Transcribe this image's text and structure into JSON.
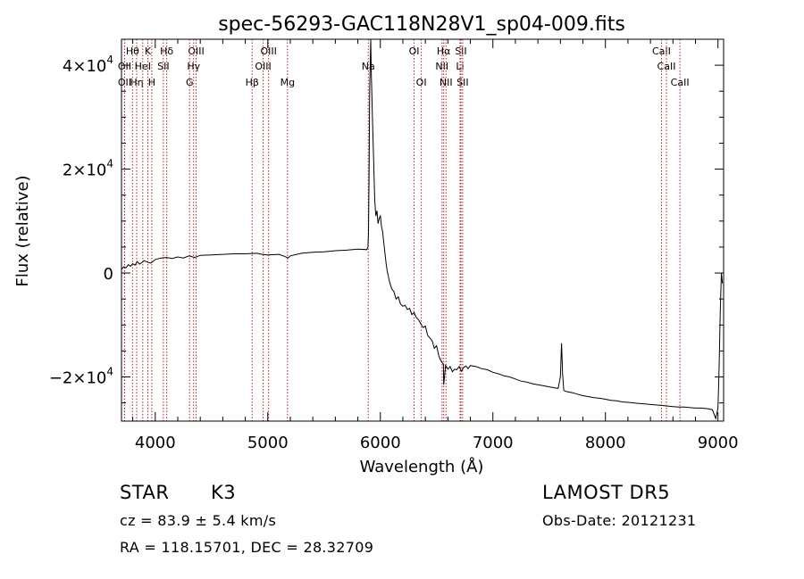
{
  "chart_data": {
    "type": "line",
    "title": "spec-56293-GAC118N28V1_sp04-009.fits",
    "xlabel": "Wavelength (Å)",
    "ylabel": "Flux (relative)",
    "xlim": [
      3700,
      9050
    ],
    "ylim": [
      -28500,
      45000
    ],
    "xticks": [
      4000,
      5000,
      6000,
      7000,
      8000,
      9000
    ],
    "yticks": [
      {
        "value": 40000,
        "mant": "4×10",
        "exp": "4"
      },
      {
        "value": 20000,
        "mant": "2×10",
        "exp": "4"
      },
      {
        "value": 0,
        "mant": "0",
        "exp": ""
      },
      {
        "value": -20000,
        "mant": "−2×10",
        "exp": "4"
      }
    ],
    "grid": false,
    "line_color": "#000000",
    "marker_color": "#b22222",
    "series": [
      {
        "x": [
          3700,
          3720,
          3740,
          3760,
          3780,
          3800,
          3820,
          3840,
          3860,
          3880,
          3900,
          3930,
          3960,
          4000,
          4050,
          4100,
          4150,
          4200,
          4250,
          4300,
          4350,
          4400,
          4500,
          4600,
          4700,
          4800,
          4900,
          4950,
          5000,
          5100,
          5150,
          5180,
          5200,
          5300,
          5400,
          5500,
          5600,
          5700,
          5800,
          5880,
          5890,
          5895,
          5900,
          5905,
          5910,
          5915,
          5920,
          5930,
          5940,
          5950,
          5960,
          5970,
          5980,
          5990,
          6000,
          6010,
          6020,
          6030,
          6040,
          6050,
          6060,
          6080,
          6100,
          6120,
          6140,
          6160,
          6180,
          6200,
          6220,
          6240,
          6260,
          6280,
          6300,
          6320,
          6340,
          6360,
          6380,
          6400,
          6420,
          6440,
          6460,
          6480,
          6500,
          6520,
          6540,
          6560,
          6563,
          6580,
          6600,
          6620,
          6640,
          6660,
          6680,
          6700,
          6720,
          6740,
          6760,
          6780,
          6800,
          6850,
          6900,
          6950,
          7000,
          7050,
          7100,
          7150,
          7200,
          7250,
          7300,
          7350,
          7400,
          7450,
          7500,
          7550,
          7580,
          7600,
          7610,
          7620,
          7630,
          7650,
          7700,
          7750,
          7800,
          7850,
          7900,
          7950,
          8000,
          8050,
          8100,
          8150,
          8200,
          8250,
          8300,
          8350,
          8400,
          8450,
          8500,
          8550,
          8600,
          8650,
          8700,
          8750,
          8800,
          8850,
          8900,
          8950,
          8980,
          9000,
          9010,
          9020,
          9030,
          9040
        ],
        "y": [
          700,
          1200,
          1000,
          1600,
          1300,
          1800,
          1500,
          2200,
          1700,
          2000,
          2400,
          2100,
          1900,
          2600,
          2900,
          3000,
          2800,
          3100,
          2900,
          3300,
          3000,
          3400,
          3500,
          3600,
          3700,
          3700,
          3800,
          3600,
          3500,
          3600,
          3200,
          2900,
          3300,
          3800,
          4000,
          4100,
          4300,
          4400,
          4600,
          4500,
          5000,
          8000,
          20000,
          35000,
          40000,
          45000,
          38000,
          30000,
          22000,
          14000,
          11000,
          12000,
          9500,
          10500,
          11000,
          9000,
          8000,
          6000,
          4000,
          2000,
          500,
          -1500,
          -3000,
          -3600,
          -5000,
          -4600,
          -6000,
          -6400,
          -6200,
          -7000,
          -6800,
          -8000,
          -7600,
          -8600,
          -9000,
          -9800,
          -10500,
          -10200,
          -12000,
          -12500,
          -13000,
          -14500,
          -14000,
          -16000,
          -17000,
          -17500,
          -21500,
          -17800,
          -18500,
          -18000,
          -19000,
          -18500,
          -18600,
          -18000,
          -18900,
          -18200,
          -17900,
          -18400,
          -17800,
          -18000,
          -18400,
          -18600,
          -19100,
          -19400,
          -19800,
          -20000,
          -20400,
          -20800,
          -21000,
          -21300,
          -21500,
          -21700,
          -21900,
          -22100,
          -22200,
          -20000,
          -13500,
          -19500,
          -22600,
          -22800,
          -23000,
          -23300,
          -23600,
          -23800,
          -24000,
          -24100,
          -24300,
          -24500,
          -24600,
          -24800,
          -24900,
          -25000,
          -25100,
          -25200,
          -25300,
          -25400,
          -25500,
          -25600,
          -25700,
          -25800,
          -25800,
          -25900,
          -26000,
          -26000,
          -26100,
          -26300,
          -28000,
          -26000,
          -18000,
          -8000,
          0,
          -2000
        ]
      }
    ],
    "lines": [
      {
        "label": "Hθ",
        "x": 3798,
        "row": 0
      },
      {
        "label": "OII",
        "x": 3727,
        "row": 1
      },
      {
        "label": "OII",
        "x": 3727,
        "row": 2
      },
      {
        "label": "Hη",
        "x": 3835,
        "row": 2
      },
      {
        "label": "HeI",
        "x": 3889,
        "row": 1
      },
      {
        "label": "K",
        "x": 3934,
        "row": 0
      },
      {
        "label": "H",
        "x": 3969,
        "row": 2
      },
      {
        "label": "Hδ",
        "x": 4102,
        "row": 0
      },
      {
        "label": "SII",
        "x": 4072,
        "row": 1
      },
      {
        "label": "OIII",
        "x": 4363,
        "row": 0
      },
      {
        "label": "Hγ",
        "x": 4341,
        "row": 1
      },
      {
        "label": "G",
        "x": 4305,
        "row": 2
      },
      {
        "label": "Hβ",
        "x": 4861,
        "row": 2
      },
      {
        "label": "OIII",
        "x": 4959,
        "row": 1
      },
      {
        "label": "OIII",
        "x": 5007,
        "row": 0
      },
      {
        "label": "Mg",
        "x": 5175,
        "row": 2
      },
      {
        "label": "Na",
        "x": 5893,
        "row": 1
      },
      {
        "label": "OI",
        "x": 6300,
        "row": 0
      },
      {
        "label": "OI",
        "x": 6364,
        "row": 2
      },
      {
        "label": "NII",
        "x": 6548,
        "row": 1
      },
      {
        "label": "Hα",
        "x": 6563,
        "row": 0
      },
      {
        "label": "NII",
        "x": 6583,
        "row": 2
      },
      {
        "label": "SII",
        "x": 6716,
        "row": 0
      },
      {
        "label": "Li",
        "x": 6708,
        "row": 1
      },
      {
        "label": "SII",
        "x": 6731,
        "row": 2
      },
      {
        "label": "CaII",
        "x": 8498,
        "row": 0
      },
      {
        "label": "CaII",
        "x": 8542,
        "row": 1
      },
      {
        "label": "CaII",
        "x": 8662,
        "row": 2
      }
    ]
  },
  "info": {
    "class": "STAR",
    "subclass": "K3",
    "survey": "LAMOST  DR5",
    "cz": "cz = 83.9 ± 5.4 km/s",
    "obs_date": "Obs-Date: 20121231",
    "radec": "RA = 118.15701, DEC =  28.32709"
  }
}
